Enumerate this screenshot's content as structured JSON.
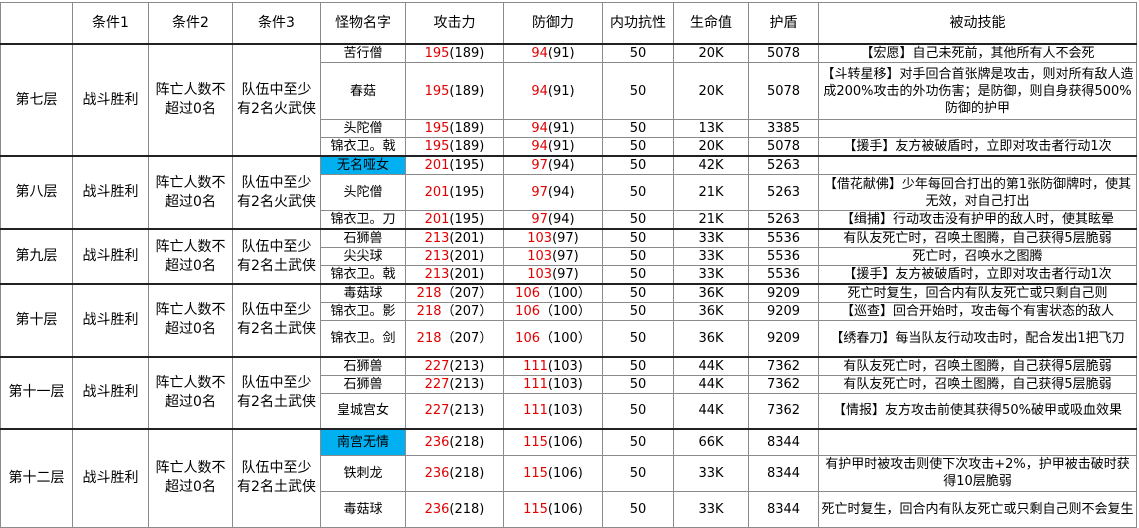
{
  "table": {
    "headers": [
      "条件1",
      "条件2",
      "条件3",
      "怪物名字",
      "攻击力",
      "防御力",
      "内功抗性",
      "生命值",
      "护盾",
      "被动技能"
    ],
    "highlight_color": "#00b0f0",
    "floors": [
      {
        "floor": "第七层",
        "cond1": "战斗胜利",
        "cond2": "阵亡人数不超过0名",
        "cond3": "队伍中至少有2名火武侠",
        "monsters": [
          {
            "name": "苦行僧",
            "attack": "195",
            "attack_base": "(189)",
            "defense": "94",
            "defense_base": "(91)",
            "resist": "50",
            "hp": "20K",
            "shield": "5078",
            "skill": "【宏愿】自己未死前，其他所有人不会死"
          },
          {
            "name": "春菇",
            "attack": "195",
            "attack_base": "(189)",
            "defense": "94",
            "defense_base": "(91)",
            "resist": "50",
            "hp": "20K",
            "shield": "5078",
            "skill": "【斗转星移】对手回合首张牌是攻击，则对所有敌人造成200%攻击的外功伤害；是防御，则自身获得500%防御的护甲"
          },
          {
            "name": "头陀僧",
            "attack": "195",
            "attack_base": "(189)",
            "defense": "94",
            "defense_base": "(91)",
            "resist": "50",
            "hp": "13K",
            "shield": "3385"
          },
          {
            "name": "锦衣卫。戟",
            "attack": "195",
            "attack_base": "(189)",
            "defense": "94",
            "defense_base": "(91)",
            "resist": "50",
            "hp": "20K",
            "shield": "5078",
            "skill": "【援手】友方被破盾时，立即对攻击者行动1次"
          }
        ]
      },
      {
        "floor": "第八层",
        "cond1": "战斗胜利",
        "cond2": "阵亡人数不超过0名",
        "cond3": "队伍中至少有2名火武侠",
        "monsters": [
          {
            "name": "无名哑女",
            "highlight": true,
            "attack": "201",
            "attack_base": "(195)",
            "defense": "97",
            "defense_base": "(94)",
            "resist": "50",
            "hp": "42K",
            "shield": "5263"
          },
          {
            "name": "头陀僧",
            "attack": "201",
            "attack_base": "(195)",
            "defense": "97",
            "defense_base": "(94)",
            "resist": "50",
            "hp": "21K",
            "shield": "5263",
            "skill": "【借花献佛】少年每回合打出的第1张防御牌时，使其无效，对自己打出"
          },
          {
            "name": "锦衣卫。刀",
            "attack": "201",
            "attack_base": "(195)",
            "defense": "97",
            "defense_base": "(94)",
            "resist": "50",
            "hp": "21K",
            "shield": "5263",
            "skill": "【缉捕】行动攻击没有护甲的敌人时，使其眩晕"
          }
        ]
      },
      {
        "floor": "第九层",
        "cond1": "战斗胜利",
        "cond2": "阵亡人数不超过0名",
        "cond3": "队伍中至少有2名土武侠",
        "monsters": [
          {
            "name": "石狮兽",
            "attack": "213",
            "attack_base": "(201)",
            "defense": "103",
            "defense_base": "(97)",
            "resist": "50",
            "hp": "33K",
            "shield": "5536",
            "skill": "有队友死亡时，召唤土图腾，自己获得5层脆弱"
          },
          {
            "name": "尖尖球",
            "attack": "213",
            "attack_base": "(201)",
            "defense": "103",
            "defense_base": "(97)",
            "resist": "50",
            "hp": "33K",
            "shield": "5536",
            "skill": "死亡时，召唤水之图腾"
          },
          {
            "name": "锦衣卫。戟",
            "attack": "213",
            "attack_base": "(201)",
            "defense": "103",
            "defense_base": "(97)",
            "resist": "50",
            "hp": "33K",
            "shield": "5536",
            "skill": "【援手】友方被破盾时，立即对攻击者行动1次"
          }
        ]
      },
      {
        "floor": "第十层",
        "cond1": "战斗胜利",
        "cond2": "阵亡人数不超过0名",
        "cond3": "队伍中至少有2名土武侠",
        "monsters": [
          {
            "name": "毒菇球",
            "attack": "218",
            "attack_base": "（207）",
            "defense": "106",
            "defense_base": "（100）",
            "resist": "50",
            "hp": "36K",
            "shield": "9209",
            "skill": "死亡时复生，回合内有队友死亡或只剩自己则"
          },
          {
            "name": "锦衣卫。影",
            "attack": "218",
            "attack_base": "（207）",
            "defense": "106",
            "defense_base": "（100）",
            "resist": "50",
            "hp": "36K",
            "shield": "9209",
            "skill": "【巡查】回合开始时，攻击每个有害状态的敌人"
          },
          {
            "name": "锦衣卫。剑",
            "attack": "218",
            "attack_base": "（207）",
            "defense": "106",
            "defense_base": "（100）",
            "resist": "50",
            "hp": "36K",
            "shield": "9209",
            "skill": "【绣春刀】每当队友行动攻击时，配合发出1把飞刀"
          }
        ]
      },
      {
        "floor": "第十一层",
        "cond1": "战斗胜利",
        "cond2": "阵亡人数不超过0名",
        "cond3": "队伍中至少有2名土武侠",
        "monsters": [
          {
            "name": "石狮兽",
            "attack": "227",
            "attack_base": "(213)",
            "defense": "111",
            "defense_base": "(103)",
            "resist": "50",
            "hp": "44K",
            "shield": "7362",
            "skill": "有队友死亡时，召唤土图腾，自己获得5层脆弱"
          },
          {
            "name": "石狮兽",
            "attack": "227",
            "attack_base": "(213)",
            "defense": "111",
            "defense_base": "(103)",
            "resist": "50",
            "hp": "44K",
            "shield": "7362",
            "skill": "有队友死亡时，召唤土图腾，自己获得5层脆弱"
          },
          {
            "name": "皇城宫女",
            "attack": "227",
            "attack_base": "(213)",
            "defense": "111",
            "defense_base": "(103)",
            "resist": "50",
            "hp": "44K",
            "shield": "7362",
            "skill": "【情报】友方攻击前使其获得50%破甲或吸血效果"
          }
        ]
      },
      {
        "floor": "第十二层",
        "cond1": "战斗胜利",
        "cond2": "阵亡人数不超过0名",
        "cond3": "队伍中至少有2名土武侠",
        "monsters": [
          {
            "name": "南宫无情",
            "highlight": true,
            "attack": "236",
            "attack_base": "(218)",
            "defense": "115",
            "defense_base": "(106)",
            "resist": "50",
            "hp": "66K",
            "shield": "8344"
          },
          {
            "name": "铁刺龙",
            "attack": "236",
            "attack_base": "(218)",
            "defense": "115",
            "defense_base": "(106)",
            "resist": "50",
            "hp": "33K",
            "shield": "8344",
            "skill": "有护甲时被攻击则使下次攻击+2%，护甲被击破时获得10层脆弱"
          },
          {
            "name": "毒菇球",
            "attack": "236",
            "attack_base": "(218)",
            "defense": "115",
            "defense_base": "(106)",
            "resist": "50",
            "hp": "33K",
            "shield": "8344",
            "skill": "死亡时复生，回合内有队友死亡或只剩自己则不会复生"
          }
        ]
      }
    ]
  }
}
